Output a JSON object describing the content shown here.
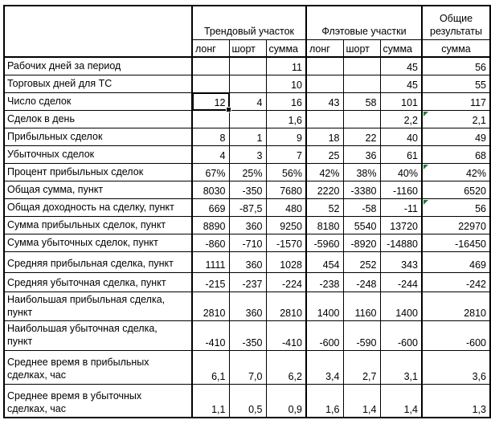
{
  "app": {
    "type": "spreadsheet-results-table",
    "language": "ru"
  },
  "colors": {
    "background": "#ffffff",
    "grid_border": "#000000",
    "text": "#000000",
    "error_indicator_green": "#1e7d32",
    "selection_border": "#000000"
  },
  "table": {
    "header": {
      "corner_label": "",
      "groups": [
        {
          "label": "Трендовый участок",
          "sub": [
            "лонг",
            "шорт",
            "сумма"
          ]
        },
        {
          "label": "Флэтовые участки",
          "sub": [
            "лонг",
            "шорт",
            "сумма"
          ]
        },
        {
          "label": "Общие результаты",
          "sub": [
            "сумма"
          ]
        }
      ]
    },
    "rows": [
      {
        "label": "Рабочих дней за период",
        "values": [
          "",
          "",
          "11",
          "",
          "",
          "45",
          "56"
        ]
      },
      {
        "label": "Торговых дней для ТС",
        "values": [
          "",
          "",
          "10",
          "",
          "",
          "45",
          "55"
        ]
      },
      {
        "label": "Число сделок",
        "values": [
          "12",
          "4",
          "16",
          "43",
          "58",
          "101",
          "117"
        ]
      },
      {
        "label": "Сделок в день",
        "values": [
          "",
          "",
          "1,6",
          "",
          "",
          "2,2",
          "2,1"
        ]
      },
      {
        "label": "Прибыльных сделок",
        "values": [
          "8",
          "1",
          "9",
          "18",
          "22",
          "40",
          "49"
        ]
      },
      {
        "label": "Убыточных сделок",
        "values": [
          "4",
          "3",
          "7",
          "25",
          "36",
          "61",
          "68"
        ]
      },
      {
        "label": "Процент прибыльных сделок",
        "values": [
          "67%",
          "25%",
          "56%",
          "42%",
          "38%",
          "40%",
          "42%"
        ]
      },
      {
        "label": "Общая сумма, пункт",
        "values": [
          "8030",
          "-350",
          "7680",
          "2220",
          "-3380",
          "-1160",
          "6520"
        ]
      },
      {
        "label": "Общая доходность на сделку, пункт",
        "values": [
          "669",
          "-87,5",
          "480",
          "52",
          "-58",
          "-11",
          "56"
        ]
      },
      {
        "label": "Сумма прибыльных сделок, пункт",
        "values": [
          "8890",
          "360",
          "9250",
          "8180",
          "5540",
          "13720",
          "22970"
        ]
      },
      {
        "label": "Сумма убыточных сделок, пункт",
        "values": [
          "-860",
          "-710",
          "-1570",
          "-5960",
          "-8920",
          "-14880",
          "-16450"
        ]
      },
      {
        "label": "Средняя прибыльная сделка, пункт",
        "values": [
          "1111",
          "360",
          "1028",
          "454",
          "252",
          "343",
          "469"
        ]
      },
      {
        "label": "Средняя убыточная сделка, пункт",
        "values": [
          "-215",
          "-237",
          "-224",
          "-238",
          "-248",
          "-244",
          "-242"
        ]
      },
      {
        "label": "Наибольшая прибыльная сделка,\nпункт",
        "values": [
          "2810",
          "360",
          "2810",
          "1400",
          "1160",
          "1400",
          "2810"
        ]
      },
      {
        "label": "Наибольшая убыточная сделка,\nпункт",
        "values": [
          "-410",
          "-350",
          "-410",
          "-600",
          "-590",
          "-600",
          "-600"
        ]
      },
      {
        "label": "Среднее время в прибыльных\nсделках, час",
        "values": [
          "6,1",
          "7,0",
          "6,2",
          "3,4",
          "2,7",
          "3,1",
          "3,6"
        ]
      },
      {
        "label": "Среднее время в убыточных\nсделках, час",
        "values": [
          "1,1",
          "0,5",
          "0,9",
          "1,6",
          "1,4",
          "1,4",
          "1,3"
        ]
      }
    ],
    "selected_cell": {
      "row_index": 2,
      "col_index": 0,
      "value": "12"
    },
    "error_marker_cells": [
      {
        "row_index": 3,
        "col_index": 6
      },
      {
        "row_index": 6,
        "col_index": 6
      },
      {
        "row_index": 8,
        "col_index": 6
      }
    ]
  }
}
